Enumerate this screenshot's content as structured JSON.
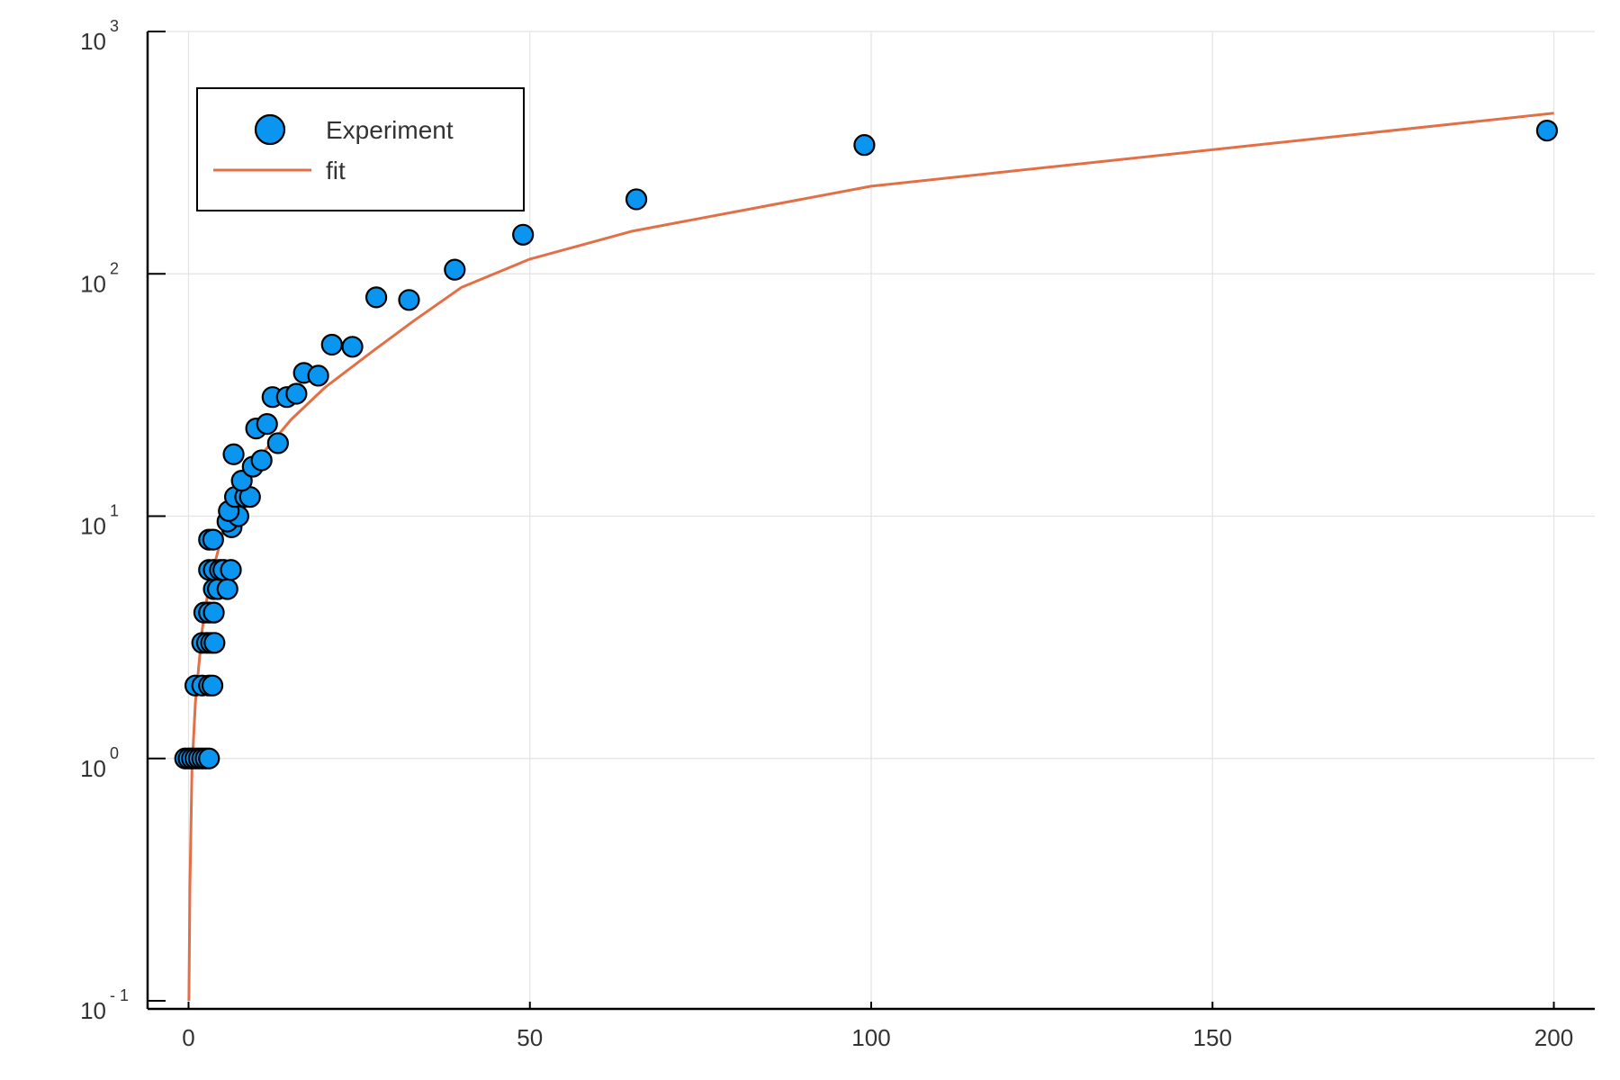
{
  "chart_data": {
    "type": "scatter",
    "title": "",
    "xlabel": "",
    "ylabel": "",
    "xlim": [
      -6,
      206
    ],
    "ylim": [
      0.1,
      1000
    ],
    "yscale": "log",
    "grid": true,
    "legend_position": "top-left",
    "x_ticks": [
      {
        "value": 0,
        "label": "0"
      },
      {
        "value": 50,
        "label": "50"
      },
      {
        "value": 100,
        "label": "100"
      },
      {
        "value": 150,
        "label": "150"
      },
      {
        "value": 200,
        "label": "200"
      }
    ],
    "y_ticks": [
      {
        "value": 0.1,
        "base": "10",
        "exp": "- 1"
      },
      {
        "value": 1,
        "base": "10",
        "exp": "0"
      },
      {
        "value": 10,
        "base": "10",
        "exp": "1"
      },
      {
        "value": 100,
        "base": "10",
        "exp": "2"
      },
      {
        "value": 1000,
        "base": "10",
        "exp": "3"
      }
    ],
    "series": [
      {
        "name": "Experiment",
        "kind": "scatter",
        "color": "#0a96f0",
        "points": [
          [
            -0.5,
            1
          ],
          [
            0,
            1
          ],
          [
            0.5,
            1
          ],
          [
            1,
            1
          ],
          [
            1.5,
            1
          ],
          [
            2,
            1
          ],
          [
            2.5,
            1
          ],
          [
            3,
            1
          ],
          [
            1,
            2
          ],
          [
            2,
            2
          ],
          [
            3,
            2
          ],
          [
            3.5,
            2
          ],
          [
            2,
            3
          ],
          [
            2.7,
            3
          ],
          [
            3.3,
            3
          ],
          [
            3.8,
            3
          ],
          [
            2.3,
            4
          ],
          [
            3,
            4
          ],
          [
            3.7,
            4
          ],
          [
            3.7,
            5
          ],
          [
            4.3,
            5
          ],
          [
            5.7,
            5
          ],
          [
            3,
            6
          ],
          [
            3.7,
            6
          ],
          [
            4.6,
            6
          ],
          [
            5.1,
            6
          ],
          [
            6.2,
            6
          ],
          [
            3,
            8
          ],
          [
            3.6,
            8
          ],
          [
            6.3,
            9
          ],
          [
            5.7,
            9.5
          ],
          [
            7.3,
            10
          ],
          [
            5.9,
            10.5
          ],
          [
            6.8,
            12
          ],
          [
            8.3,
            12
          ],
          [
            9,
            12
          ],
          [
            7.8,
            14
          ],
          [
            9.4,
            16
          ],
          [
            10.7,
            17
          ],
          [
            6.6,
            18
          ],
          [
            13.1,
            20
          ],
          [
            9.9,
            23
          ],
          [
            11.5,
            24
          ],
          [
            12.3,
            31
          ],
          [
            14.4,
            31
          ],
          [
            15.8,
            32
          ],
          [
            16.9,
            39
          ],
          [
            19,
            38
          ],
          [
            21,
            51
          ],
          [
            24,
            50
          ],
          [
            27.5,
            80
          ],
          [
            32.3,
            78
          ],
          [
            39,
            104
          ],
          [
            49,
            145
          ],
          [
            65.6,
            203
          ],
          [
            99,
            340
          ],
          [
            199,
            390
          ]
        ]
      },
      {
        "name": "fit",
        "kind": "line",
        "color": "#e26f46",
        "points": [
          [
            0.05,
            0.1
          ],
          [
            0.2,
            0.3
          ],
          [
            0.5,
            0.9
          ],
          [
            1,
            1.7
          ],
          [
            2,
            3.4
          ],
          [
            3,
            5.2
          ],
          [
            5,
            8.5
          ],
          [
            7,
            12
          ],
          [
            10,
            17
          ],
          [
            15,
            25
          ],
          [
            20,
            34
          ],
          [
            27,
            48
          ],
          [
            33,
            64
          ],
          [
            40,
            88
          ],
          [
            50,
            115
          ],
          [
            65,
            150
          ],
          [
            100,
            230
          ],
          [
            200,
            460
          ]
        ]
      }
    ]
  }
}
